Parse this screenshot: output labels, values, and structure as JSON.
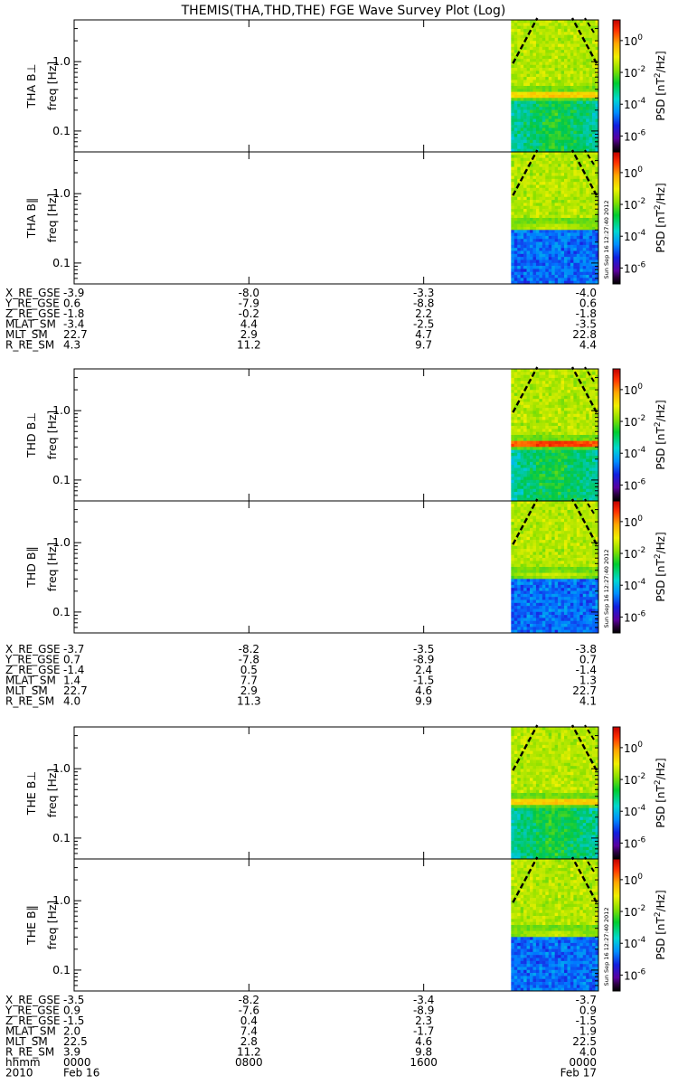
{
  "title": "THEMIS(THA,THD,THE) FGE Wave Survey Plot (Log)",
  "colorbar": {
    "label_prefix": "PSD  [nT",
    "label_sup": "2",
    "label_suffix": "/Hz]",
    "ticks": [
      {
        "base": "10",
        "exp": "0",
        "value": 1
      },
      {
        "base": "10",
        "exp": "-2",
        "value": 0.01
      },
      {
        "base": "10",
        "exp": "-4",
        "value": 0.0001
      },
      {
        "base": "10",
        "exp": "-6",
        "value": 1e-06
      }
    ]
  },
  "chart_data": {
    "type": "heatmap",
    "title": "THEMIS(THA,THD,THE) FGE Wave Survey Plot (Log)",
    "xaxis": {
      "start": "2010 Feb 16 0000",
      "end": "2010 Feb 17 0000",
      "ticks": [
        "0000",
        "0800",
        "1600",
        "0000"
      ],
      "date_labels": [
        "2010",
        "Feb 16",
        "Feb 17"
      ],
      "row_label": "hhmm"
    },
    "yaxis": {
      "scale": "log",
      "label": "freq [Hz]",
      "ticks": [
        "1.0",
        "0.1"
      ],
      "range_hz": [
        0.05,
        4.0
      ]
    },
    "colorscale": {
      "scale": "log",
      "range": [
        1e-07,
        20
      ]
    },
    "data_interval_hours": [
      20.0,
      24.0
    ],
    "stamp": "Sun Sep 16 12:27:40 2012",
    "probes": [
      {
        "name": "THA",
        "panels": [
          {
            "label": "THA B⊥",
            "peak_freq_hz": 0.33,
            "peak_psd": 1
          },
          {
            "label": "THA B‖",
            "peak_freq_hz": 0.33,
            "peak_psd": 0.1
          }
        ],
        "ephemeris": [
          {
            "label": "X_RE_GSE",
            "values": [
              "-3.9",
              "-8.0",
              "-3.3",
              "-4.0"
            ]
          },
          {
            "label": "Y_RE_GSE",
            "values": [
              "0.6",
              "-7.9",
              "-8.8",
              "0.6"
            ]
          },
          {
            "label": "Z_RE_GSE",
            "values": [
              "-1.8",
              "-0.2",
              "2.2",
              "-1.8"
            ]
          },
          {
            "label": "MLAT_SM",
            "values": [
              "-3.4",
              "4.4",
              "-2.5",
              "-3.5"
            ]
          },
          {
            "label": "MLT_SM",
            "values": [
              "22.7",
              "2.9",
              "4.7",
              "22.8"
            ]
          },
          {
            "label": "R_RE_SM",
            "values": [
              "4.3",
              "11.2",
              "9.7",
              "4.4"
            ]
          }
        ]
      },
      {
        "name": "THD",
        "panels": [
          {
            "label": "THD B⊥",
            "peak_freq_hz": 0.33,
            "peak_psd": 10
          },
          {
            "label": "THD B‖",
            "peak_freq_hz": 0.34,
            "peak_psd": 0.1
          }
        ],
        "ephemeris": [
          {
            "label": "X_RE_GSE",
            "values": [
              "-3.7",
              "-8.2",
              "-3.5",
              "-3.8"
            ]
          },
          {
            "label": "Y_RE_GSE",
            "values": [
              "0.7",
              "-7.8",
              "-8.9",
              "0.7"
            ]
          },
          {
            "label": "Z_RE_GSE",
            "values": [
              "-1.4",
              "0.5",
              "2.4",
              "-1.4"
            ]
          },
          {
            "label": "MLAT_SM",
            "values": [
              "1.4",
              "7.7",
              "-1.5",
              "1.3"
            ]
          },
          {
            "label": "MLT_SM",
            "values": [
              "22.7",
              "2.9",
              "4.6",
              "22.7"
            ]
          },
          {
            "label": "R_RE_SM",
            "values": [
              "4.0",
              "11.3",
              "9.9",
              "4.1"
            ]
          }
        ]
      },
      {
        "name": "THE",
        "panels": [
          {
            "label": "THE B⊥",
            "peak_freq_hz": 0.33,
            "peak_psd": 1
          },
          {
            "label": "THE B‖",
            "peak_freq_hz": 0.33,
            "peak_psd": 0.1
          }
        ],
        "ephemeris": [
          {
            "label": "X_RE_GSE",
            "values": [
              "-3.5",
              "-8.2",
              "-3.4",
              "-3.7"
            ]
          },
          {
            "label": "Y_RE_GSE",
            "values": [
              "0.9",
              "-7.6",
              "-8.9",
              "0.9"
            ]
          },
          {
            "label": "Z_RE_GSE",
            "values": [
              "-1.5",
              "0.4",
              "2.3",
              "-1.5"
            ]
          },
          {
            "label": "MLAT_SM",
            "values": [
              "2.0",
              "7.4",
              "-1.7",
              "1.9"
            ]
          },
          {
            "label": "MLT_SM",
            "values": [
              "22.5",
              "2.8",
              "4.6",
              "22.5"
            ]
          },
          {
            "label": "R_RE_SM",
            "values": [
              "3.9",
              "11.2",
              "9.8",
              "4.0"
            ]
          }
        ]
      }
    ]
  }
}
